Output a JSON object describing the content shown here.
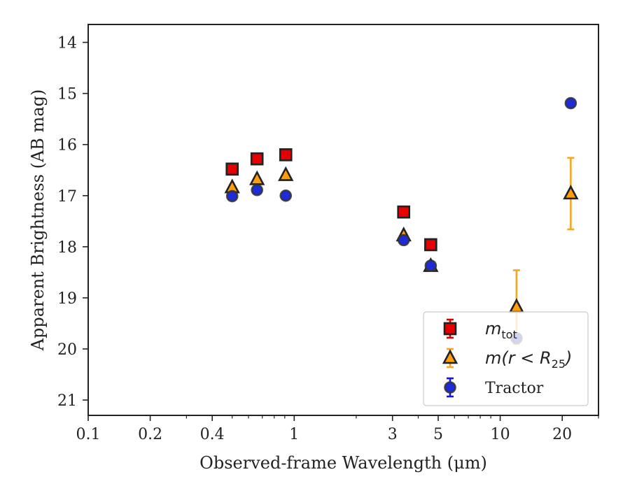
{
  "chart_data": {
    "type": "scatter",
    "xlabel": "Observed-frame Wavelength (μm)",
    "ylabel": "Apparent Brightness (AB mag)",
    "xscale": "log",
    "xlim": [
      0.1,
      30
    ],
    "ylim": [
      21.3,
      13.65
    ],
    "y_inverted": true,
    "xticks": [
      0.1,
      0.2,
      0.4,
      1,
      3,
      5,
      10,
      20
    ],
    "xtick_labels": [
      "0.1",
      "0.2",
      "0.4",
      "1",
      "3",
      "5",
      "10",
      "20"
    ],
    "yticks": [
      14,
      15,
      16,
      17,
      18,
      19,
      20,
      21
    ],
    "ytick_labels": [
      "14",
      "15",
      "16",
      "17",
      "18",
      "19",
      "20",
      "21"
    ],
    "grid": false,
    "legend_position": "bottom-right",
    "series": [
      {
        "name": "m_tot",
        "label_main": "m",
        "label_sub": "tot",
        "marker": "square",
        "face_color": "#e60000",
        "edge_color": "#222222",
        "errorbar_color": "#dd0000",
        "points": [
          {
            "x": 0.5,
            "y": 16.48,
            "yerr": 0
          },
          {
            "x": 0.66,
            "y": 16.28,
            "yerr": 0
          },
          {
            "x": 0.91,
            "y": 16.2,
            "yerr": 0
          },
          {
            "x": 3.4,
            "y": 17.32,
            "yerr": 0
          },
          {
            "x": 4.6,
            "y": 17.96,
            "yerr": 0
          }
        ]
      },
      {
        "name": "m(r < R25)",
        "label_main": "m(r < R",
        "label_sub": "25",
        "label_close": ")",
        "marker": "triangle",
        "face_color": "#ff9e0a",
        "edge_color": "#222222",
        "errorbar_color": "#f5a623",
        "points": [
          {
            "x": 0.5,
            "y": 16.84,
            "yerr": 0
          },
          {
            "x": 0.66,
            "y": 16.68,
            "yerr": 0
          },
          {
            "x": 0.91,
            "y": 16.6,
            "yerr": 0
          },
          {
            "x": 3.4,
            "y": 17.78,
            "yerr": 0
          },
          {
            "x": 4.6,
            "y": 18.38,
            "yerr": 0
          },
          {
            "x": 12.0,
            "y": 19.18,
            "yerr": 0.72
          },
          {
            "x": 22.0,
            "y": 16.96,
            "yerr": 0.7
          }
        ]
      },
      {
        "name": "Tractor",
        "marker": "circle",
        "face_color": "#1f2bd6",
        "edge_color": "#333333",
        "errorbar_color": "#1515e0",
        "points": [
          {
            "x": 0.5,
            "y": 17.01,
            "yerr": 0
          },
          {
            "x": 0.66,
            "y": 16.89,
            "yerr": 0
          },
          {
            "x": 0.91,
            "y": 17.0,
            "yerr": 0
          },
          {
            "x": 3.4,
            "y": 17.87,
            "yerr": 0
          },
          {
            "x": 4.6,
            "y": 18.37,
            "yerr": 0
          },
          {
            "x": 12.0,
            "y": 19.79,
            "yerr": 0
          },
          {
            "x": 22.0,
            "y": 15.19,
            "yerr": 0.06
          }
        ]
      }
    ]
  }
}
